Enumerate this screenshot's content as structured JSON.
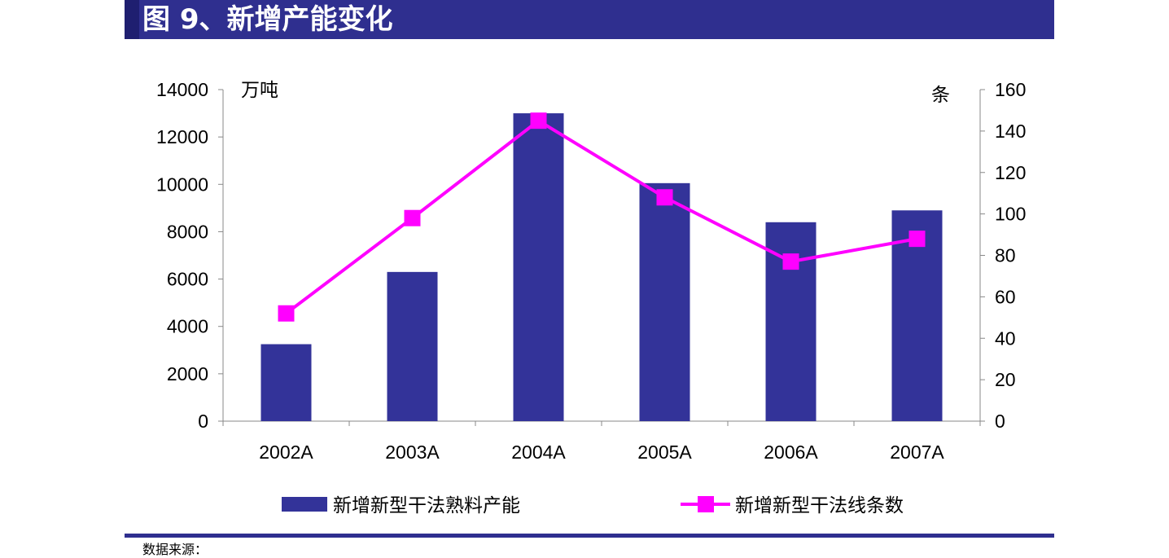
{
  "header": {
    "title": "图 9、新增产能变化"
  },
  "colors": {
    "title_bar": "#2f2f8f",
    "bar": "#333399",
    "line": "#ff00ff"
  },
  "chart_data": {
    "type": "bar",
    "categories": [
      "2002A",
      "2003A",
      "2004A",
      "2005A",
      "2006A",
      "2007A"
    ],
    "series": [
      {
        "name": "新增新型干法熟料产能",
        "type": "bar",
        "axis": "left",
        "values": [
          3250,
          6300,
          13000,
          10050,
          8400,
          8900
        ]
      },
      {
        "name": "新增新型干法线条数",
        "type": "line",
        "axis": "right",
        "values": [
          52,
          98,
          145,
          108,
          77,
          88
        ]
      }
    ],
    "left_axis": {
      "unit": "万吨",
      "ylim": [
        0,
        14000
      ],
      "ticks": [
        "0",
        "2000",
        "4000",
        "6000",
        "8000",
        "10000",
        "12000",
        "14000"
      ]
    },
    "right_axis": {
      "unit": "条",
      "ylim": [
        0,
        160
      ],
      "ticks": [
        "0",
        "20",
        "40",
        "60",
        "80",
        "100",
        "120",
        "140",
        "160"
      ]
    },
    "grid": false,
    "legend": "bottom"
  },
  "footer": {
    "source": "数据来源："
  }
}
